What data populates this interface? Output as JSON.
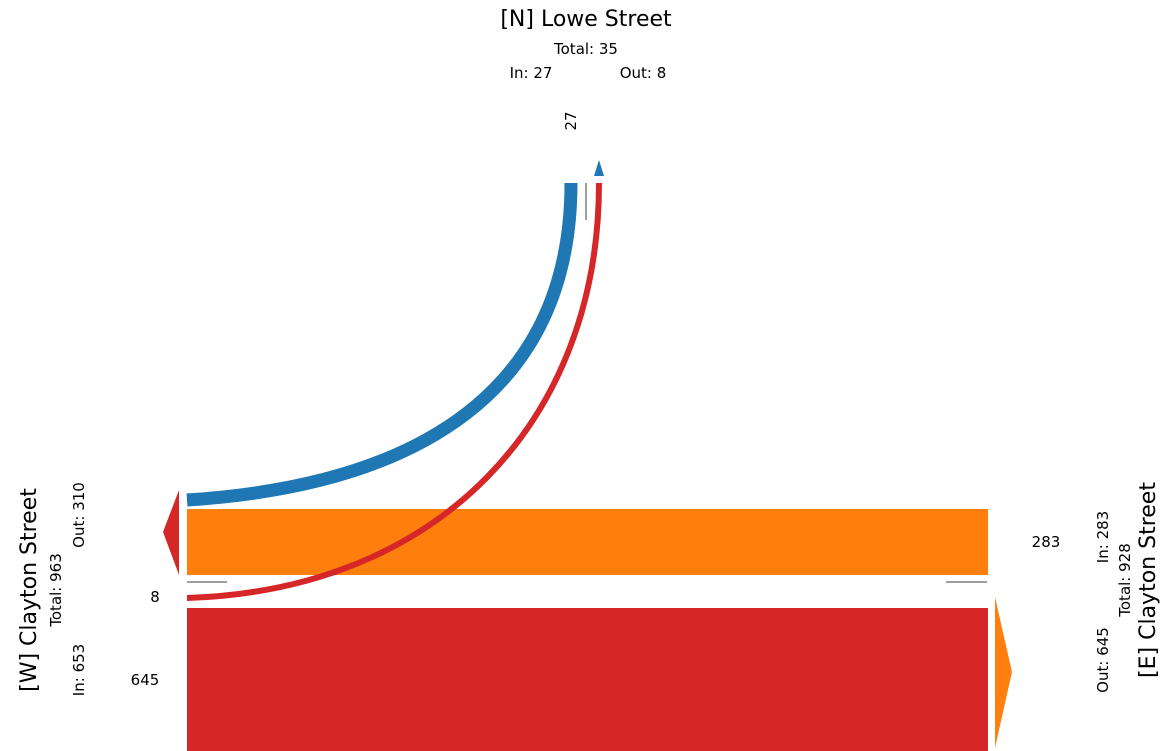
{
  "colors": {
    "west": "#d62728",
    "east": "#ff7f0e",
    "north": "#1f77b4",
    "divider": "#7f7f7f"
  },
  "approaches": {
    "north": {
      "title": "[N] Lowe Street",
      "total": "Total: 35",
      "in": "In: 27",
      "out": "Out: 8"
    },
    "west": {
      "title": "[W] Clayton Street",
      "total": "Total: 963",
      "in": "In: 653",
      "out": "Out: 310"
    },
    "east": {
      "title": "[E] Clayton Street",
      "total": "Total: 928",
      "in": "In: 283",
      "out": "Out: 645"
    }
  },
  "chart_data": {
    "type": "sankey",
    "nodes": [
      "[N] Lowe Street",
      "[W] Clayton Street",
      "[E] Clayton Street"
    ],
    "flows": [
      {
        "from": "[N] Lowe Street",
        "to": "[W] Clayton Street",
        "value": 27,
        "label": "27"
      },
      {
        "from": "[W] Clayton Street",
        "to": "[N] Lowe Street",
        "value": 8,
        "label": "8"
      },
      {
        "from": "[W] Clayton Street",
        "to": "[E] Clayton Street",
        "value": 645,
        "label": "645"
      },
      {
        "from": "[E] Clayton Street",
        "to": "[W] Clayton Street",
        "value": 283,
        "label": "283"
      }
    ]
  }
}
